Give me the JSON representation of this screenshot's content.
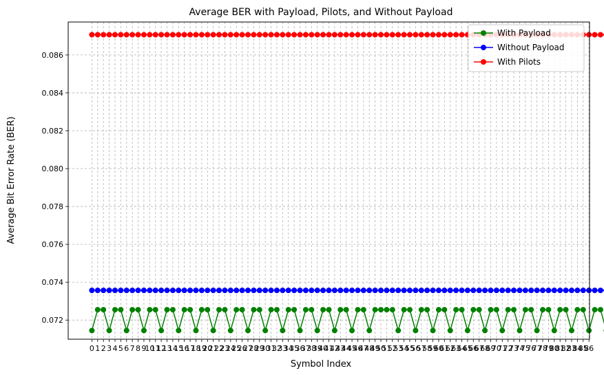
{
  "chart_data": {
    "type": "line",
    "title": "Average BER with Payload, Pilots, and Without Payload",
    "xlabel": "Symbol Index",
    "ylabel": "Average Bit Error Rate (BER)",
    "xlim": [
      -4.1,
      86.1
    ],
    "ylim": [
      0.07099,
      0.08774
    ],
    "yticks": [
      0.072,
      0.074,
      0.076,
      0.078,
      0.08,
      0.082,
      0.084,
      0.086
    ],
    "ytick_labels": [
      "0.072",
      "0.074",
      "0.076",
      "0.078",
      "0.080",
      "0.082",
      "0.084",
      "0.086"
    ],
    "xticks_range": [
      0,
      86
    ],
    "grid": true,
    "legend_position": "top-right",
    "series": [
      {
        "name": "With Payload",
        "color": "#008000",
        "x_start": 0,
        "values": [
          0.07145,
          0.07255,
          0.07255,
          0.07145,
          0.07255,
          0.07255,
          0.07145,
          0.07255,
          0.07255,
          0.07145,
          0.07255,
          0.07255,
          0.07145,
          0.07255,
          0.07255,
          0.07145,
          0.07255,
          0.07255,
          0.07145,
          0.07255,
          0.07255,
          0.07145,
          0.07255,
          0.07255,
          0.07145,
          0.07255,
          0.07255,
          0.07145,
          0.07255,
          0.07255,
          0.07145,
          0.07255,
          0.07255,
          0.07145,
          0.07255,
          0.07255,
          0.07145,
          0.07255,
          0.07255,
          0.07145,
          0.07255,
          0.07255,
          0.07145,
          0.07255,
          0.07255,
          0.07145,
          0.07255,
          0.07255,
          0.07145,
          0.07255,
          0.07255,
          0.07255,
          0.07255,
          0.07145,
          0.07255,
          0.07255,
          0.07145,
          0.07255,
          0.07255,
          0.07145,
          0.07255,
          0.07255,
          0.07145,
          0.07255,
          0.07255,
          0.07145,
          0.07255,
          0.07255,
          0.07145,
          0.07255,
          0.07255,
          0.07145,
          0.07255,
          0.07255,
          0.07145,
          0.07255,
          0.07255,
          0.07145,
          0.07255,
          0.07255,
          0.07145,
          0.07255,
          0.07255,
          0.07145,
          0.07255,
          0.07255,
          0.07145,
          0.07255,
          0.07255,
          0.07145,
          0.07255,
          0.07255,
          0.07145,
          0.07255,
          0.07255,
          0.07145,
          0.07255,
          0.07255,
          0.07145,
          0.07255,
          0.07255,
          0.07145,
          0.07255,
          0.07255,
          0.07145,
          0.07255,
          0.07255,
          0.07145,
          0.07255,
          0.07255,
          0.07145,
          0.07255,
          0.07255,
          0.07145,
          0.07255,
          0.07255,
          0.07145,
          0.07255,
          0.07255,
          0.07145,
          0.07255,
          0.07255,
          0.07145,
          0.07255,
          0.07255,
          0.07145
        ]
      },
      {
        "name": "Without Payload",
        "color": "#0000ff",
        "x_start": 0,
        "values": [
          0.07357,
          0.07357,
          0.07357,
          0.07357,
          0.07357,
          0.07357,
          0.07357,
          0.07357,
          0.07357,
          0.07357,
          0.07357,
          0.07357,
          0.07357,
          0.07357,
          0.07357,
          0.07357,
          0.07357,
          0.07357,
          0.07357,
          0.07357,
          0.07357,
          0.07357,
          0.07357,
          0.07357,
          0.07357,
          0.07357,
          0.07357,
          0.07357,
          0.07357,
          0.07357,
          0.07357,
          0.07357,
          0.07357,
          0.07357,
          0.07357,
          0.07357,
          0.07357,
          0.07357,
          0.07357,
          0.07357,
          0.07357,
          0.07357,
          0.07357,
          0.07357,
          0.07357,
          0.07357,
          0.07357,
          0.07357,
          0.07357,
          0.07357,
          0.07357,
          0.07357,
          0.07357,
          0.07357,
          0.07357,
          0.07357,
          0.07357,
          0.07357,
          0.07357,
          0.07357,
          0.07357,
          0.07357,
          0.07357,
          0.07357,
          0.07357,
          0.07357,
          0.07357,
          0.07357,
          0.07357,
          0.07357,
          0.07357,
          0.07357,
          0.07357,
          0.07357,
          0.07357,
          0.07357,
          0.07357,
          0.07357,
          0.07357,
          0.07357,
          0.07357,
          0.07357,
          0.07357,
          0.07357,
          0.07357,
          0.07357,
          0.07357,
          0.07357,
          0.07357,
          0.07357
        ]
      },
      {
        "name": "With Pilots",
        "color": "#ff0000",
        "x_start": 0,
        "values": [
          0.08707,
          0.08707,
          0.08707,
          0.08707,
          0.08707,
          0.08707,
          0.08707,
          0.08707,
          0.08707,
          0.08707,
          0.08707,
          0.08707,
          0.08707,
          0.08707,
          0.08707,
          0.08707,
          0.08707,
          0.08707,
          0.08707,
          0.08707,
          0.08707,
          0.08707,
          0.08707,
          0.08707,
          0.08707,
          0.08707,
          0.08707,
          0.08707,
          0.08707,
          0.08707,
          0.08707,
          0.08707,
          0.08707,
          0.08707,
          0.08707,
          0.08707,
          0.08707,
          0.08707,
          0.08707,
          0.08707,
          0.08707,
          0.08707,
          0.08707,
          0.08707,
          0.08707,
          0.08707,
          0.08707,
          0.08707,
          0.08707,
          0.08707,
          0.08707,
          0.08707,
          0.08707,
          0.08707,
          0.08707,
          0.08707,
          0.08707,
          0.08707,
          0.08707,
          0.08707,
          0.08707,
          0.08707,
          0.08707,
          0.08707,
          0.08707,
          0.08707,
          0.08707,
          0.08707,
          0.08707,
          0.08707,
          0.08707,
          0.08707,
          0.08707,
          0.08707,
          0.08707,
          0.08707,
          0.08707,
          0.08707,
          0.08707,
          0.08707,
          0.08707,
          0.08707,
          0.08707,
          0.08707,
          0.08707,
          0.08707,
          0.08707,
          0.08707,
          0.08707,
          0.08707,
          0.08707,
          0.08707,
          0.08707,
          0.08707,
          0.08707,
          0.08707,
          0.08707,
          0.08707,
          0.08707,
          0.08707,
          0.08707,
          0.08707,
          0.08707,
          0.08707,
          0.08707,
          0.08707,
          0.08707,
          0.08707,
          0.08707,
          0.08707,
          0.08707,
          0.08707,
          0.08707,
          0.08707,
          0.08707,
          0.08707,
          0.08707,
          0.08707,
          0.08707,
          0.08707,
          0.08707,
          0.08707,
          0.08707,
          0.08707,
          0.08707,
          0.08707,
          0.08707,
          0.08707,
          0.08707,
          0.08707,
          0.08707,
          0.08707,
          0.08707,
          0.08707,
          0.08707,
          0.08707,
          0.08707,
          0.08707,
          0.08707,
          0.08707,
          0.08707,
          0.08707,
          0.08707,
          0.08707,
          0.08707,
          0.08707,
          0.08707,
          0.08707,
          0.08707,
          0.08707,
          0.08707,
          0.08707,
          0.08707,
          0.08707,
          0.08707,
          0.08707,
          0.08707,
          0.08707,
          0.08707,
          0.08707,
          0.08707,
          0.08707,
          0.08707,
          0.08707,
          0.08707,
          0.08707,
          0.08707,
          0.08707,
          0.08707,
          0.08707,
          0.08707,
          0.08707,
          0.08707,
          0.08707,
          0.08707,
          0.08707,
          0.08707,
          0.08707,
          0.08707,
          0.08707,
          0.08707,
          0.08707,
          0.08707,
          0.08707,
          0.08707,
          0.08707,
          0.08707,
          0.08707,
          0.08707,
          0.08707,
          0.08707,
          0.08707,
          0.08707,
          0.08707,
          0.08707,
          0.08707,
          0.08707,
          0.08707,
          0.08707,
          0.08707,
          0.08707,
          0.08707,
          0.08707,
          0.08707,
          0.08707,
          0.08707,
          0.08707,
          0.08707
        ]
      }
    ]
  }
}
